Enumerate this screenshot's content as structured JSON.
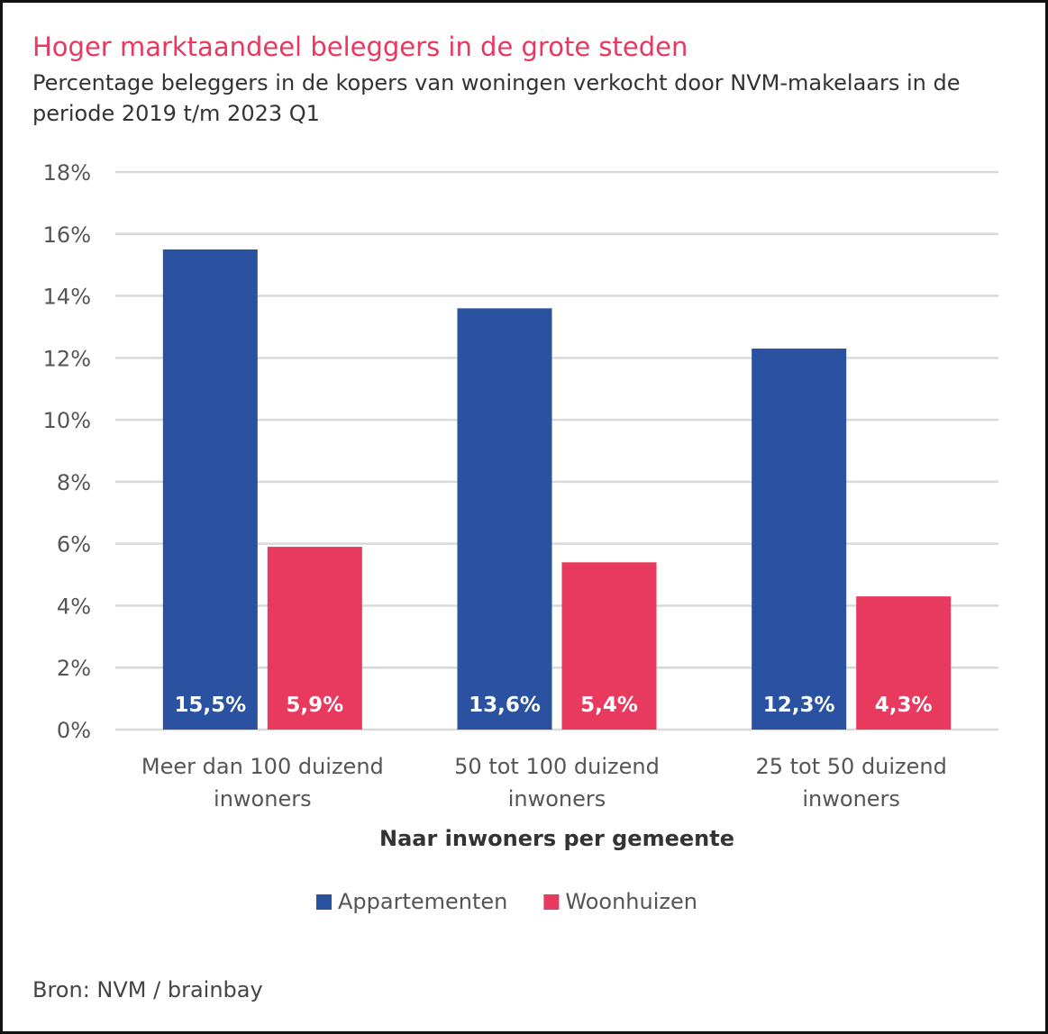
{
  "title": "Hoger marktaandeel beleggers in de grote steden",
  "subtitle": "Percentage beleggers in de kopers van woningen verkocht door NVM-makelaars in de periode 2019 t/m 2023 Q1",
  "source": "Bron: NVM / brainbay",
  "chart_data": {
    "type": "bar",
    "title": "Hoger marktaandeel beleggers in de grote steden",
    "xlabel": "Naar inwoners per gemeente",
    "ylabel": "",
    "ylim": [
      0,
      18
    ],
    "yticks": [
      "0%",
      "2%",
      "4%",
      "6%",
      "8%",
      "10%",
      "12%",
      "14%",
      "16%",
      "18%"
    ],
    "grid": true,
    "legend_placement": "bottom",
    "categories": [
      [
        "Meer dan 100 duizend",
        "inwoners"
      ],
      [
        "50 tot 100 duizend",
        "inwoners"
      ],
      [
        "25 tot 50 duizend",
        "inwoners"
      ]
    ],
    "series": [
      {
        "name": "Appartementen",
        "color": "#2a52a0",
        "values": [
          15.5,
          13.6,
          12.3
        ],
        "labels": [
          "15,5%",
          "13,6%",
          "12,3%"
        ]
      },
      {
        "name": "Woonhuizen",
        "color": "#e83a5e",
        "values": [
          5.9,
          5.4,
          4.3
        ],
        "labels": [
          "5,9%",
          "5,4%",
          "4,3%"
        ]
      }
    ]
  }
}
